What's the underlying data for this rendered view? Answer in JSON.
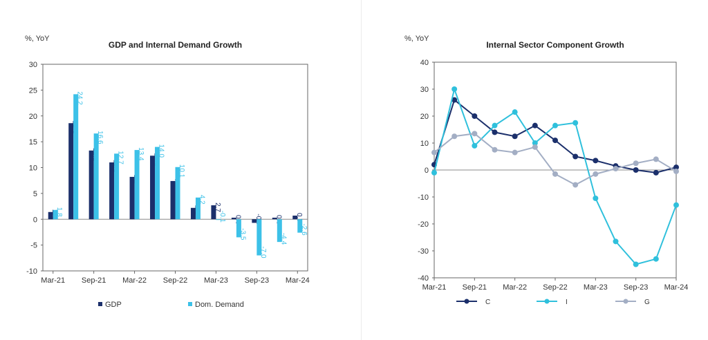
{
  "chart_data": [
    {
      "type": "bar",
      "title": "GDP and Internal Demand Growth",
      "ylabel": "%, YoY",
      "xlabel": "",
      "ylim": [
        -10,
        30
      ],
      "yticks": [
        -10,
        -5,
        0,
        5,
        10,
        15,
        20,
        25,
        30
      ],
      "categories": [
        "Mar-21",
        "Jun-21",
        "Sep-21",
        "Dec-21",
        "Mar-22",
        "Jun-22",
        "Sep-22",
        "Dec-22",
        "Mar-23",
        "Jun-23",
        "Sep-23",
        "Dec-23",
        "Mar-24"
      ],
      "xtick_labels": [
        "Mar-21",
        "Sep-21",
        "Mar-22",
        "Sep-22",
        "Mar-23",
        "Sep-23",
        "Mar-24"
      ],
      "legend": "bottom",
      "grid": false,
      "data_labels": true,
      "series": [
        {
          "name": "GDP",
          "color": "#1b2f6b",
          "values": [
            1.4,
            18.6,
            13.3,
            11.0,
            8.2,
            12.3,
            7.4,
            2.2,
            2.7,
            0.3,
            -0.7,
            0.3,
            0.7
          ]
        },
        {
          "name": "Dom. Demand",
          "color": "#3cc1e8",
          "values": [
            1.8,
            24.2,
            16.6,
            12.7,
            13.4,
            14.0,
            10.1,
            4.2,
            -0.1,
            -3.5,
            -7.0,
            -4.4,
            -2.6
          ]
        }
      ]
    },
    {
      "type": "line",
      "title": "Internal Sector Component Growth",
      "ylabel": "%, YoY",
      "xlabel": "",
      "ylim": [
        -40,
        40
      ],
      "yticks": [
        -40,
        -30,
        -20,
        -10,
        0,
        10,
        20,
        30,
        40
      ],
      "categories": [
        "Mar-21",
        "Jun-21",
        "Sep-21",
        "Dec-21",
        "Mar-22",
        "Jun-22",
        "Sep-22",
        "Dec-22",
        "Mar-23",
        "Jun-23",
        "Sep-23",
        "Dec-23",
        "Mar-24"
      ],
      "xtick_labels": [
        "Mar-21",
        "Sep-21",
        "Mar-22",
        "Sep-22",
        "Mar-23",
        "Sep-23",
        "Mar-24"
      ],
      "legend": "bottom",
      "grid": false,
      "series": [
        {
          "name": "C",
          "color": "#1b2f6b",
          "values": [
            2,
            26,
            20,
            14,
            12.5,
            16.5,
            11,
            5,
            3.5,
            1.5,
            0,
            -1,
            1
          ]
        },
        {
          "name": "I",
          "color": "#2fc0dc",
          "values": [
            -1,
            30,
            9,
            16.5,
            21.5,
            10,
            16.5,
            17.5,
            -10.5,
            -26.5,
            -35,
            -33,
            -13
          ]
        },
        {
          "name": "G",
          "color": "#a3aec4",
          "values": [
            6.5,
            12.5,
            13.5,
            7.5,
            6.5,
            8.5,
            -1.5,
            -5.5,
            -1.5,
            0.5,
            2.5,
            4,
            -0.5
          ]
        }
      ]
    }
  ]
}
